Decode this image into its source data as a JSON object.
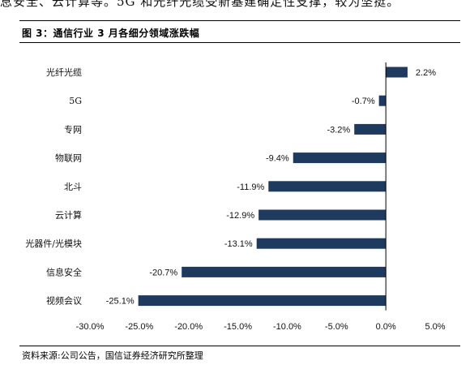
{
  "header": {
    "top_text": "息安全、云计算等。5G 和光纤光缆受新基建确定性支撑，较为坚挺。",
    "figure_title": "图 3：通信行业 3 月各细分领域涨跌幅"
  },
  "footer": {
    "source": "资料来源:公司公告，国信证券经济研究所整理"
  },
  "colors": {
    "bar": "#1f3a5f"
  },
  "chart_data": {
    "type": "bar",
    "orientation": "horizontal",
    "title": "",
    "xlabel": "",
    "ylabel": "",
    "categories": [
      "光纤光缆",
      "5G",
      "专网",
      "物联网",
      "北斗",
      "云计算",
      "光器件/光模块",
      "信息安全",
      "视频会议"
    ],
    "values": [
      2.2,
      -0.7,
      -3.2,
      -9.4,
      -11.9,
      -12.9,
      -13.1,
      -20.7,
      -25.1
    ],
    "value_labels": [
      "2.2%",
      "-0.7%",
      "-3.2%",
      "-9.4%",
      "-11.9%",
      "-12.9%",
      "-13.1%",
      "-20.7%",
      "-25.1%"
    ],
    "xlim": [
      -30,
      5
    ],
    "xticks": [
      -30,
      -25,
      -20,
      -15,
      -10,
      -5,
      0,
      5
    ],
    "xtick_labels": [
      "-30.0%",
      "-25.0%",
      "-20.0%",
      "-15.0%",
      "-10.0%",
      "-5.0%",
      "0.0%",
      "5.0%"
    ],
    "grid": false,
    "legend": "none"
  }
}
